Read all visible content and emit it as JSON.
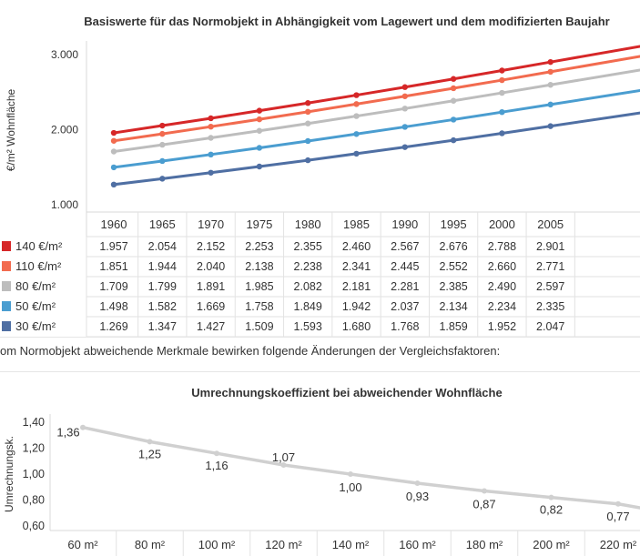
{
  "intro_text": "om Normobjekt abweichende Merkmale bewirken folgende Änderungen der Vergleichsfaktoren:",
  "chart_data": [
    {
      "type": "line",
      "title": "Basiswerte für das Normobjekt in Abhängigkeit vom Lagewert und dem modifizierten Baujahr",
      "ylabel": "€/m² Wohnfläche",
      "ylim": [
        1000,
        3000
      ],
      "yticks": [
        "1.000",
        "2.000",
        "3.000"
      ],
      "categories": [
        "1960",
        "1965",
        "1970",
        "1975",
        "1980",
        "1985",
        "1990",
        "1995",
        "2000",
        "2005"
      ],
      "series": [
        {
          "name": "140 €/m²",
          "color": "#d62728",
          "values": [
            1957,
            2054,
            2152,
            2253,
            2355,
            2460,
            2567,
            2676,
            2788,
            2901
          ],
          "labels": [
            "1.957",
            "2.054",
            "2.152",
            "2.253",
            "2.355",
            "2.460",
            "2.567",
            "2.676",
            "2.788",
            "2.901"
          ]
        },
        {
          "name": "110 €/m²",
          "color": "#f26b4f",
          "values": [
            1851,
            1944,
            2040,
            2138,
            2238,
            2341,
            2445,
            2552,
            2660,
            2771
          ],
          "labels": [
            "1.851",
            "1.944",
            "2.040",
            "2.138",
            "2.238",
            "2.341",
            "2.445",
            "2.552",
            "2.660",
            "2.771"
          ]
        },
        {
          "name": "80 €/m²",
          "color": "#bdbdbd",
          "values": [
            1709,
            1799,
            1891,
            1985,
            2082,
            2181,
            2281,
            2385,
            2490,
            2597
          ],
          "labels": [
            "1.709",
            "1.799",
            "1.891",
            "1.985",
            "2.082",
            "2.181",
            "2.281",
            "2.385",
            "2.490",
            "2.597"
          ]
        },
        {
          "name": "50 €/m²",
          "color": "#4a9dd0",
          "values": [
            1498,
            1582,
            1669,
            1758,
            1849,
            1942,
            2037,
            2134,
            2234,
            2335
          ],
          "labels": [
            "1.498",
            "1.582",
            "1.669",
            "1.758",
            "1.849",
            "1.942",
            "2.037",
            "2.134",
            "2.234",
            "2.335"
          ]
        },
        {
          "name": "30 €/m²",
          "color": "#4f6fa3",
          "values": [
            1269,
            1347,
            1427,
            1509,
            1593,
            1680,
            1768,
            1859,
            1952,
            2047
          ],
          "labels": [
            "1.269",
            "1.347",
            "1.427",
            "1.509",
            "1.593",
            "1.680",
            "1.768",
            "1.859",
            "1.952",
            "2.047"
          ]
        }
      ]
    },
    {
      "type": "line",
      "title": "Umrechnungskoeffizient bei abweichender Wohnfläche",
      "ylabel": "Umrechnungsk.",
      "ylim": [
        0.6,
        1.4
      ],
      "yticks": [
        "0,60",
        "0,80",
        "1,00",
        "1,20",
        "1,40"
      ],
      "categories": [
        "60 m²",
        "80 m²",
        "100 m²",
        "120 m²",
        "140 m²",
        "160 m²",
        "180 m²",
        "200 m²",
        "220 m²"
      ],
      "color": "#d0d0d0",
      "values": [
        1.36,
        1.25,
        1.16,
        1.07,
        1.0,
        0.93,
        0.87,
        0.82,
        0.77
      ],
      "labels": [
        "1,36",
        "1,25",
        "1,16",
        "1,07",
        "1,00",
        "0,93",
        "0,87",
        "0,82",
        "0,77"
      ],
      "tail_value": 0.74
    }
  ]
}
